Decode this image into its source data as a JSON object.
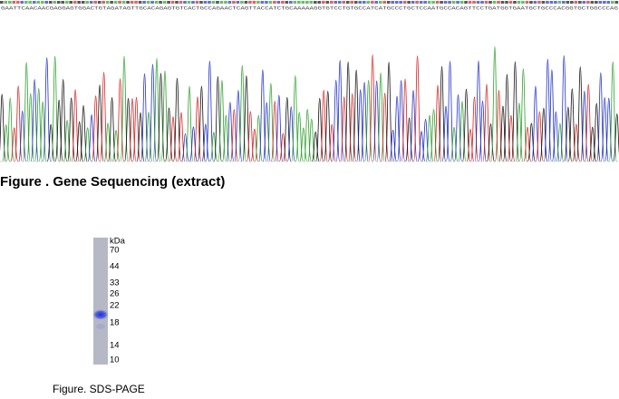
{
  "sequence": "GAATTCAACAACGAGGAGTGGACTGTAGATAGTTGCACAGAGTGTCACTGCCAGAACTCAGTTACCATCTGCAAAAAGGTGTCCTGTGCCATCATGCCCTGCTCCAATGCCACAGTTCCTGATGGTGAATGCTGCCCACGGTGCTGGCCCAG",
  "sequencing_caption": "Figure . Gene Sequencing (extract)",
  "gel": {
    "unit": "kDa",
    "markers": [
      "70",
      "44",
      "33",
      "26",
      "22",
      "18",
      "14",
      "10"
    ]
  },
  "gel_caption": "Figure. SDS-PAGE"
}
